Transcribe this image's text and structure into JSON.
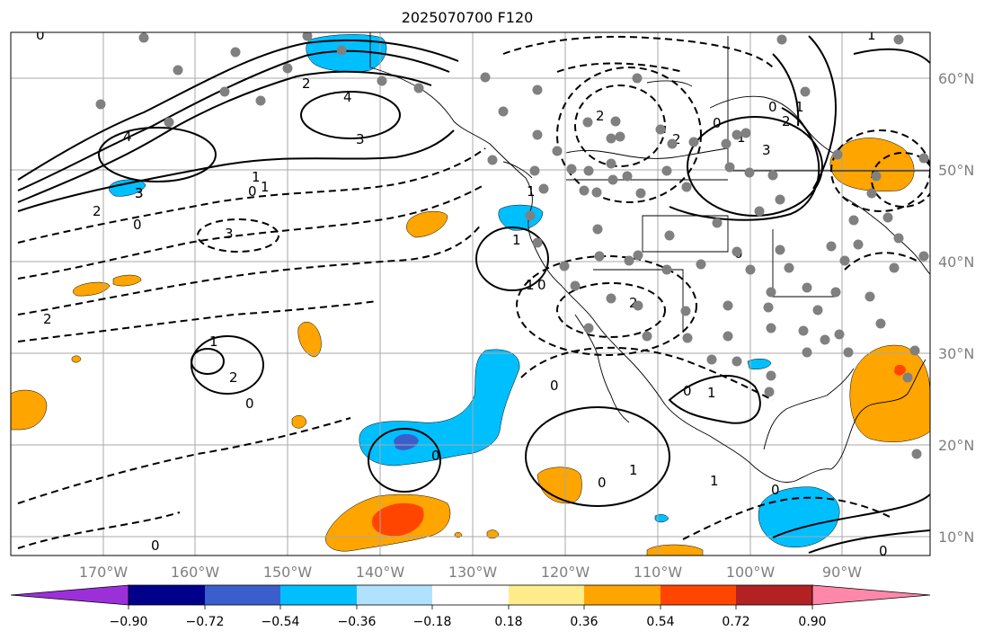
{
  "title": "2025070700 F120",
  "map": {
    "grid": true,
    "longitude_labels": [
      "170°W",
      "160°W",
      "150°W",
      "140°W",
      "130°W",
      "120°W",
      "110°W",
      "100°W",
      "90°W"
    ],
    "latitude_labels": [
      "60°N",
      "50°N",
      "40°N",
      "30°N",
      "20°N",
      "10°N"
    ],
    "contour_labels": [
      "0",
      "2",
      "4",
      "3",
      "1",
      "0",
      "3",
      "2",
      "0",
      "1",
      "2",
      "4",
      "3",
      "0",
      "1",
      "2",
      "0",
      "1",
      "1",
      "0",
      "3",
      "1",
      "2",
      "0",
      "0",
      "2",
      "1",
      "1",
      "0",
      "2",
      "0",
      "0",
      "1",
      "0",
      "3",
      "2",
      "1",
      "0",
      "1",
      "0",
      "1",
      "0"
    ]
  },
  "colorbar": {
    "tick_labels": [
      "−0.90",
      "−0.72",
      "−0.54",
      "−0.36",
      "−0.18",
      "0.18",
      "0.36",
      "0.54",
      "0.72",
      "0.90"
    ],
    "colors": [
      "#9b30d9",
      "#00008b",
      "#3a5fcd",
      "#00bfff",
      "#b0e2ff",
      "#ffffff",
      "#ffec8b",
      "#ffa500",
      "#ff4500",
      "#b22222",
      "#ff88aa"
    ]
  }
}
